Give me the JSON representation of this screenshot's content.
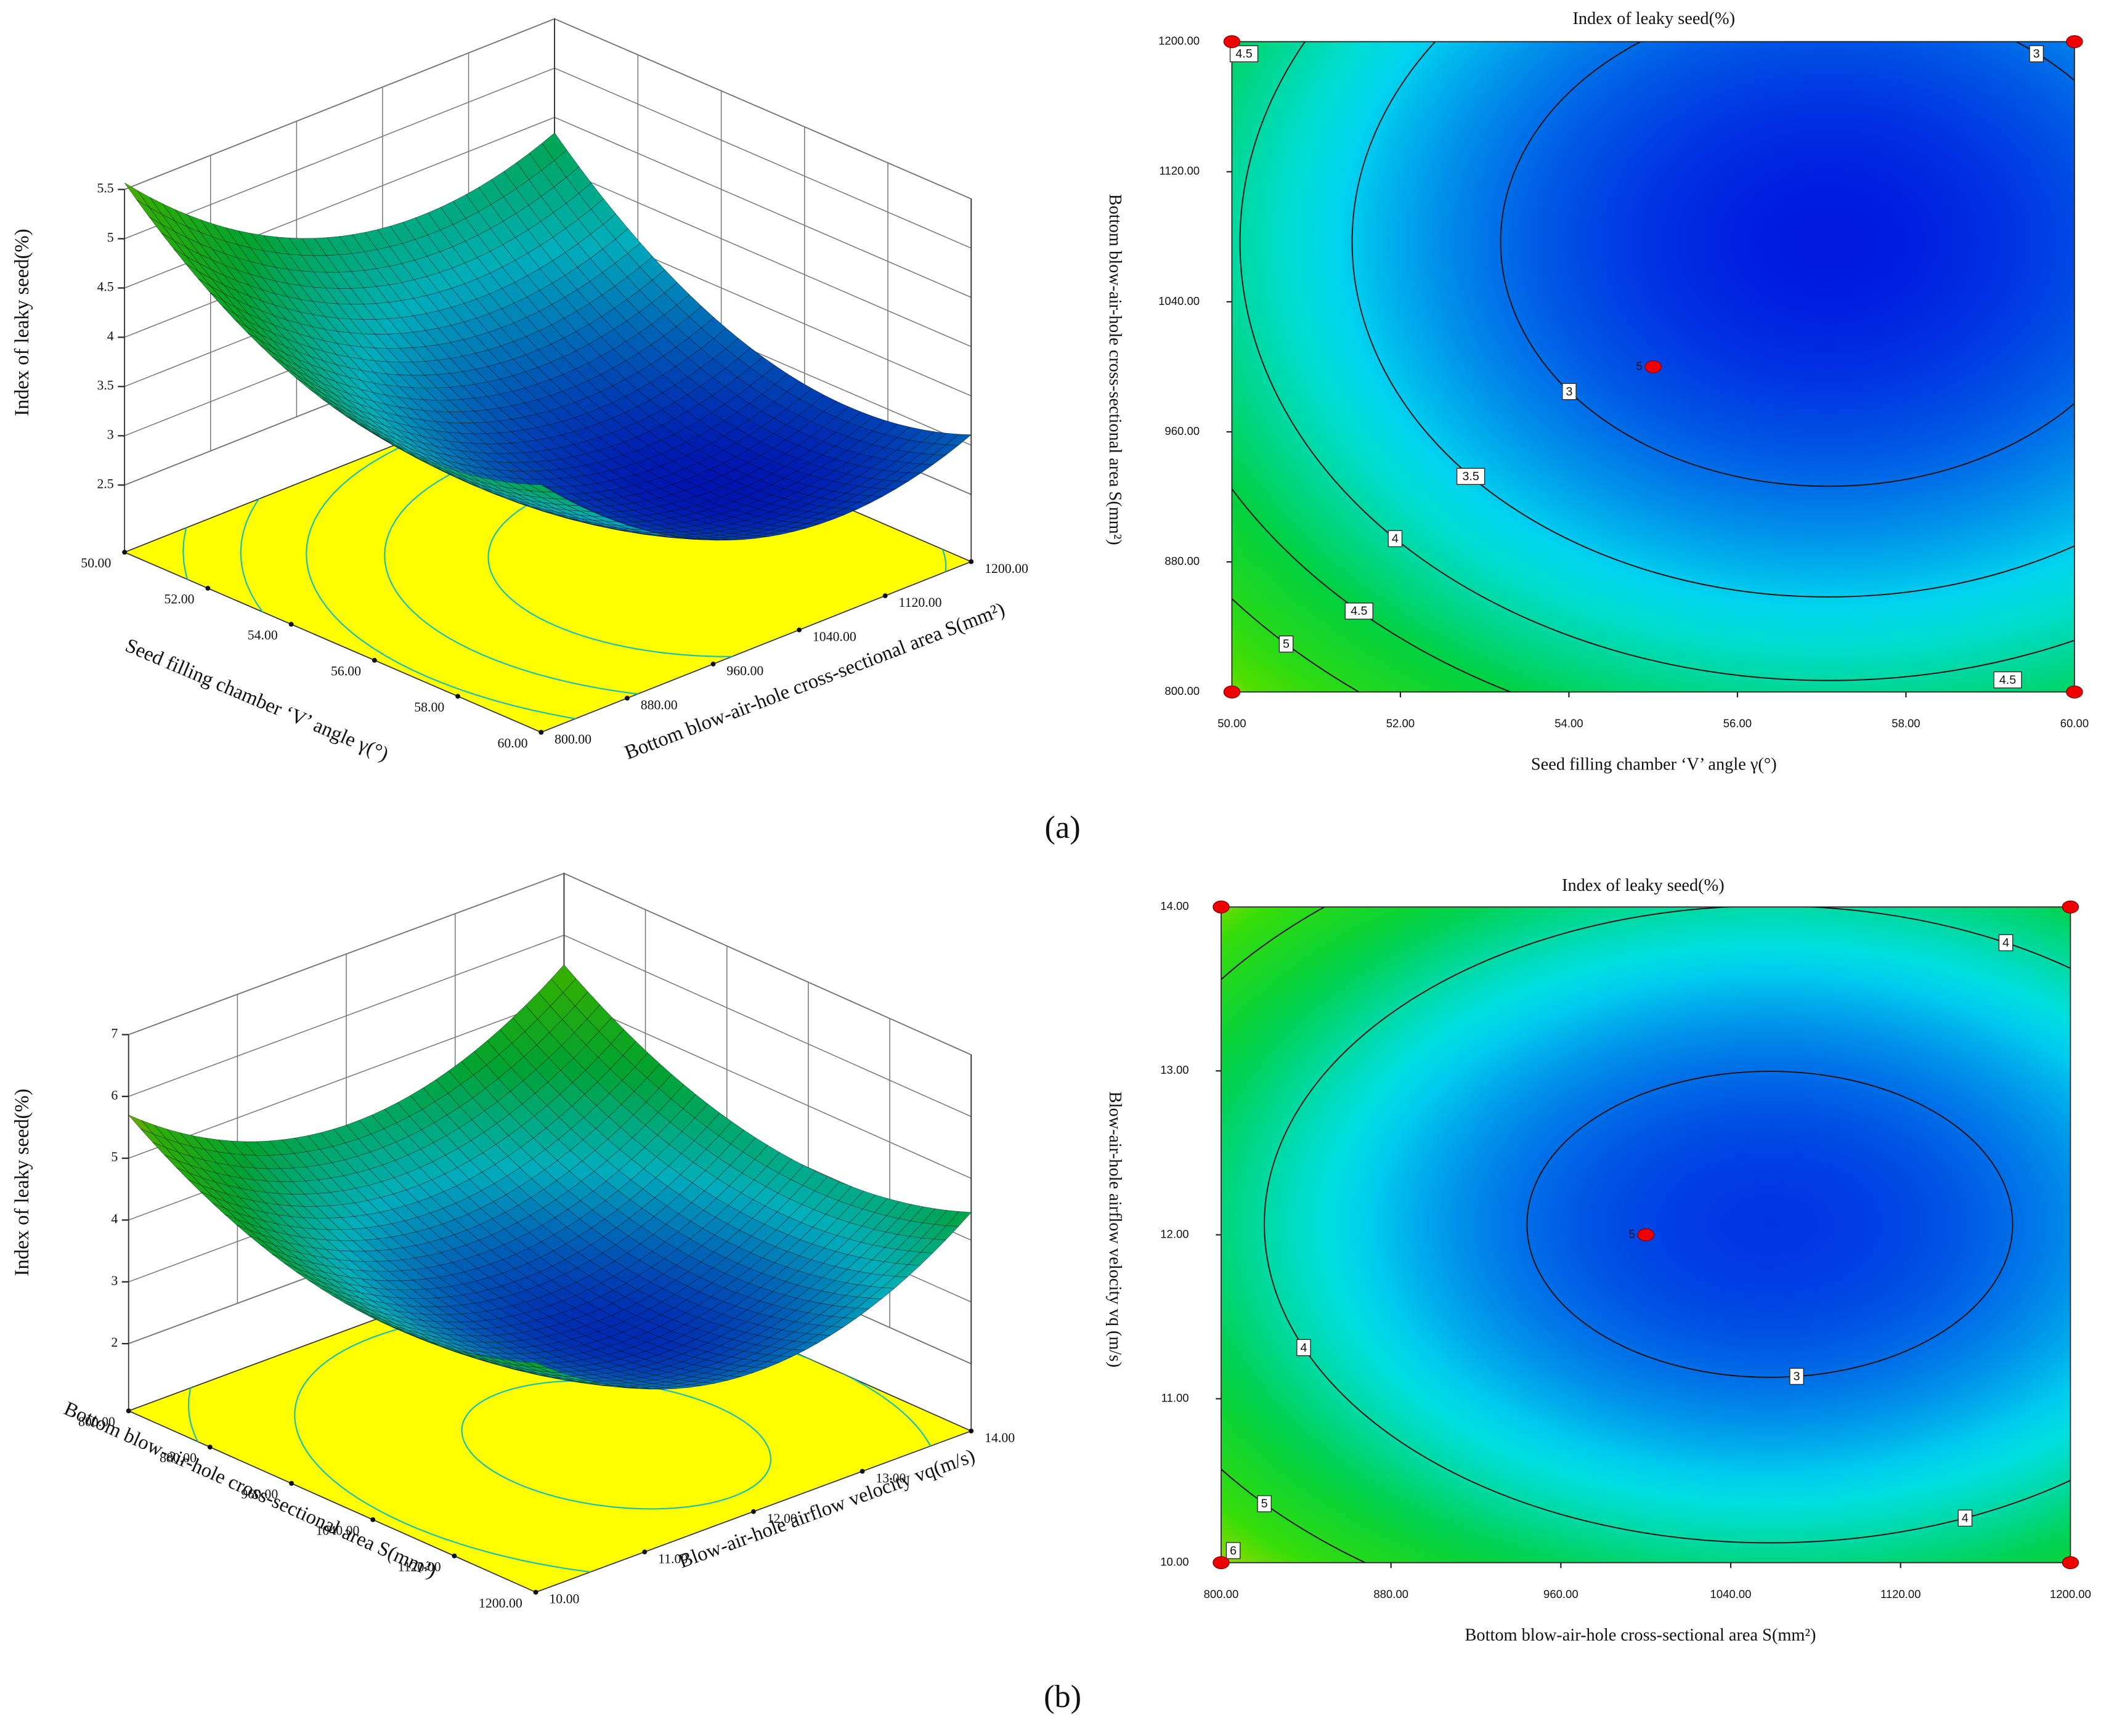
{
  "panel_labels": [
    "(a)",
    "(b)"
  ],
  "chart_data": [
    {
      "type": "surface3d",
      "zlabel": "Index of leaky seed(%)",
      "xlabel": "Seed filling chamber ‘V’ angle γ(°)",
      "ylabel": "Bottom blow-air-hole cross-sectional area S(mm²)",
      "xlim": [
        50,
        60
      ],
      "xticks": [
        {
          "value": 50,
          "label": "50.00"
        },
        {
          "value": 52,
          "label": "52.00"
        },
        {
          "value": 54,
          "label": "54.00"
        },
        {
          "value": 56,
          "label": "56.00"
        },
        {
          "value": 58,
          "label": "58.00"
        },
        {
          "value": 60,
          "label": "60.00"
        }
      ],
      "ylim": [
        800,
        1200
      ],
      "yticks": [
        {
          "value": 800,
          "label": "800.00"
        },
        {
          "value": 880,
          "label": "880.00"
        },
        {
          "value": 960,
          "label": "960.00"
        },
        {
          "value": 1040,
          "label": "1040.00"
        },
        {
          "value": 1120,
          "label": "1120.00"
        },
        {
          "value": 1200,
          "label": "1200.00"
        }
      ],
      "zlim": [
        2.5,
        5.5
      ],
      "zticks": [
        2.5,
        3,
        3.5,
        4,
        4.5,
        5,
        5.5
      ]
    },
    {
      "type": "contour",
      "title": "Index of leaky seed(%)",
      "xlabel": "Seed filling chamber ‘V’ angle γ(°)",
      "ylabel": "Bottom blow-air-hole cross-sectional area S(mm²)",
      "xlim": [
        50,
        60
      ],
      "xticks": [
        {
          "value": 50,
          "label": "50.00"
        },
        {
          "value": 52,
          "label": "52.00"
        },
        {
          "value": 54,
          "label": "54.00"
        },
        {
          "value": 56,
          "label": "56.00"
        },
        {
          "value": 58,
          "label": "58.00"
        },
        {
          "value": 60,
          "label": "60.00"
        }
      ],
      "ylim": [
        800,
        1200
      ],
      "yticks": [
        {
          "value": 800,
          "label": "800.00"
        },
        {
          "value": 880,
          "label": "880.00"
        },
        {
          "value": 960,
          "label": "960.00"
        },
        {
          "value": 1040,
          "label": "1040.00"
        },
        {
          "value": 1120,
          "label": "1120.00"
        },
        {
          "value": 1200,
          "label": "1200.00"
        }
      ],
      "levels": [
        3,
        3.5,
        4,
        4.5,
        5
      ],
      "contour_labels": [
        4.5,
        3,
        3,
        3.5,
        4,
        4.5,
        5,
        4.5
      ],
      "points": {
        "x": [
          50,
          50,
          60,
          60,
          55
        ],
        "y": [
          800,
          1200,
          800,
          1200,
          1000
        ]
      },
      "center_points": 5
    },
    {
      "type": "surface3d",
      "zlabel": "Index of leaky seed(%)",
      "xlabel": "Bottom blow-air-hole cross-sectional area S(mm²)",
      "ylabel": "Blow-air-hole airflow velocity vq(m/s)",
      "xlim": [
        800,
        1200
      ],
      "xticks": [
        {
          "value": 800,
          "label": "800.00"
        },
        {
          "value": 880,
          "label": "880.00"
        },
        {
          "value": 960,
          "label": "960.00"
        },
        {
          "value": 1040,
          "label": "1040.00"
        },
        {
          "value": 1120,
          "label": "1120.00"
        },
        {
          "value": 1200,
          "label": "1200.00"
        }
      ],
      "ylim": [
        10,
        14
      ],
      "yticks": [
        {
          "value": 10,
          "label": "10.00"
        },
        {
          "value": 11,
          "label": "11.00"
        },
        {
          "value": 12,
          "label": "12.00"
        },
        {
          "value": 13,
          "label": "13.00"
        },
        {
          "value": 14,
          "label": "14.00"
        }
      ],
      "zlim": [
        2,
        7
      ],
      "zticks": [
        2,
        3,
        4,
        5,
        6,
        7
      ]
    },
    {
      "type": "contour",
      "title": "Index of leaky seed(%)",
      "xlabel": "Bottom blow-air-hole cross-sectional area S(mm²)",
      "ylabel": "Blow-air-hole airflow velocity vq (m/s)",
      "xlim": [
        800,
        1200
      ],
      "xticks": [
        {
          "value": 800,
          "label": "800.00"
        },
        {
          "value": 880,
          "label": "880.00"
        },
        {
          "value": 960,
          "label": "960.00"
        },
        {
          "value": 1040,
          "label": "1040.00"
        },
        {
          "value": 1120,
          "label": "1120.00"
        },
        {
          "value": 1200,
          "label": "1200.00"
        }
      ],
      "ylim": [
        10,
        14
      ],
      "yticks": [
        {
          "value": 10,
          "label": "10.00"
        },
        {
          "value": 11,
          "label": "11.00"
        },
        {
          "value": 12,
          "label": "12.00"
        },
        {
          "value": 13,
          "label": "13.00"
        },
        {
          "value": 14,
          "label": "14.00"
        }
      ],
      "levels": [
        3,
        4,
        5,
        6
      ],
      "contour_labels": [
        4,
        3,
        4,
        5,
        6,
        4
      ],
      "points": {
        "x": [
          800,
          800,
          1200,
          1200,
          1000
        ],
        "y": [
          10,
          14,
          10,
          14,
          12
        ]
      },
      "center_points": 5
    }
  ]
}
